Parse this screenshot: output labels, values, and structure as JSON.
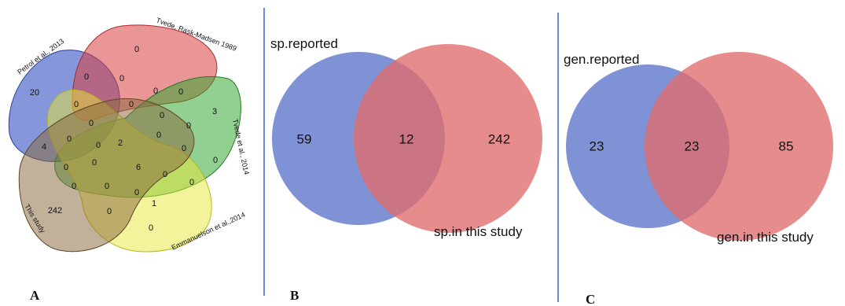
{
  "panels": {
    "a": {
      "letter": "A",
      "sets": [
        {
          "label": "Petrol et al., 2013",
          "color": "#3a57c4"
        },
        {
          "label": "Tvede, Rask-Madsen 1989",
          "color": "#d84040"
        },
        {
          "label": "Tvede et al., 2014",
          "color": "#2ca42c"
        },
        {
          "label": "Emmanuelson et al.,2014",
          "color": "#e8e838"
        },
        {
          "label": "This study",
          "color": "#8b6a3e"
        }
      ],
      "regions": {
        "r1": "20",
        "r2": "0",
        "r3": "3",
        "r4": "0",
        "r5": "242",
        "r6": "0",
        "r7": "0",
        "r8": "0",
        "r9": "0",
        "r10": "0",
        "r11": "0",
        "r12": "0",
        "r13": "0",
        "r14": "0",
        "r15": "0",
        "r16": "4",
        "r17": "0",
        "r18": "0",
        "r19": "2",
        "r20": "0",
        "r21": "0",
        "r22": "0",
        "r23": "0",
        "r24": "6",
        "r25": "0",
        "r26": "0",
        "r27": "0",
        "r28": "0",
        "r29": "0",
        "r30": "1",
        "r31": "0"
      }
    },
    "b": {
      "letter": "B",
      "left_label": "sp.reported",
      "right_label": "sp.in this study",
      "left_only": "59",
      "overlap": "12",
      "right_only": "242",
      "left_color": "#6a7fcf",
      "right_color": "#e06c6c"
    },
    "c": {
      "letter": "C",
      "left_label": "gen.reported",
      "right_label": "gen.in this study",
      "left_only": "23",
      "overlap": "23",
      "right_only": "85",
      "left_color": "#6a7fcf",
      "right_color": "#e06c6c"
    },
    "divider_color": "#3a5fcf"
  }
}
